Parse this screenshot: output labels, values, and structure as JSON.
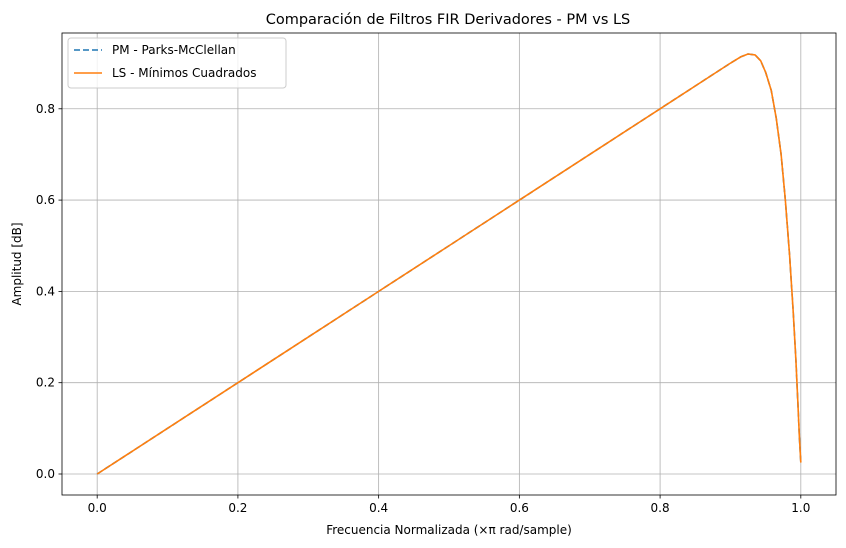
{
  "chart_data": {
    "type": "line",
    "title": "Comparación de Filtros FIR Derivadores - PM vs LS",
    "xlabel": "Frecuencia Normalizada (×π rad/sample)",
    "ylabel": "Amplitud [dB]",
    "xlim": [
      -0.05,
      1.05
    ],
    "ylim": [
      -0.046,
      0.966
    ],
    "xticks": [
      0.0,
      0.2,
      0.4,
      0.6,
      0.8,
      1.0
    ],
    "xtick_labels": [
      "0.0",
      "0.2",
      "0.4",
      "0.6",
      "0.8",
      "1.0"
    ],
    "yticks": [
      0.0,
      0.2,
      0.4,
      0.6,
      0.8
    ],
    "ytick_labels": [
      "0.0",
      "0.2",
      "0.4",
      "0.6",
      "0.8"
    ],
    "grid": true,
    "legend_position": "top-left",
    "series": [
      {
        "name": "PM - Parks-McClellan",
        "color": "#1f77b4",
        "style": "dashed",
        "x": [
          0.0,
          0.1,
          0.2,
          0.3,
          0.4,
          0.5,
          0.6,
          0.7,
          0.8,
          0.9,
          0.915,
          0.925,
          0.935,
          0.943,
          0.95,
          0.958,
          0.965,
          0.972,
          0.978,
          0.984,
          0.989,
          0.993,
          0.996,
          0.998,
          1.0
        ],
        "y": [
          0.0,
          0.1,
          0.2,
          0.3,
          0.4,
          0.5,
          0.6,
          0.7,
          0.8,
          0.9,
          0.914,
          0.92,
          0.918,
          0.905,
          0.88,
          0.84,
          0.78,
          0.7,
          0.6,
          0.48,
          0.36,
          0.25,
          0.15,
          0.08,
          0.025
        ]
      },
      {
        "name": "LS - Mínimos Cuadrados",
        "color": "#ff7f0e",
        "style": "solid",
        "x": [
          0.0,
          0.1,
          0.2,
          0.3,
          0.4,
          0.5,
          0.6,
          0.7,
          0.8,
          0.9,
          0.915,
          0.925,
          0.935,
          0.943,
          0.95,
          0.958,
          0.965,
          0.972,
          0.978,
          0.984,
          0.989,
          0.993,
          0.996,
          0.998,
          1.0
        ],
        "y": [
          0.0,
          0.1,
          0.2,
          0.3,
          0.4,
          0.5,
          0.6,
          0.7,
          0.8,
          0.9,
          0.914,
          0.92,
          0.918,
          0.905,
          0.88,
          0.84,
          0.78,
          0.7,
          0.6,
          0.48,
          0.36,
          0.25,
          0.15,
          0.08,
          0.025
        ]
      }
    ]
  }
}
